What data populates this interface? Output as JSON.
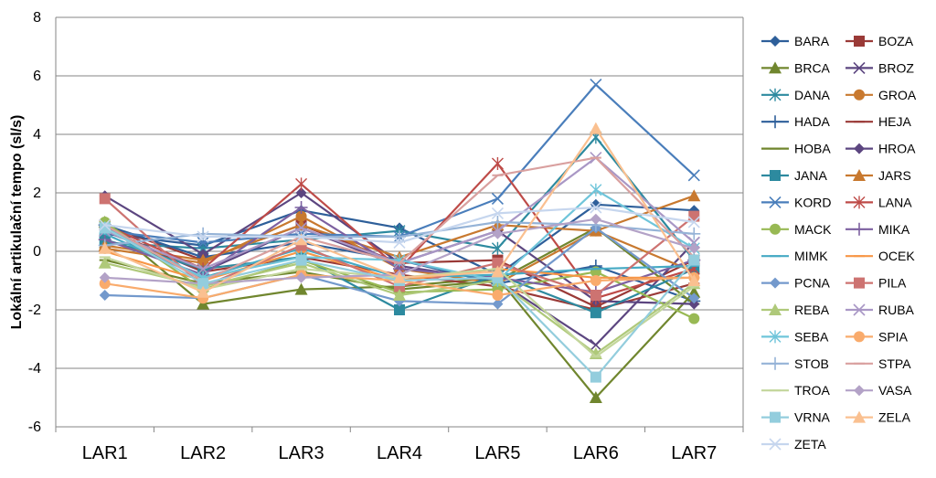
{
  "chart_data": {
    "type": "line",
    "title": "",
    "xlabel": "",
    "ylabel": "Lokální artikulační tempo (sl/s)",
    "categories": [
      "LAR1",
      "LAR2",
      "LAR3",
      "LAR4",
      "LAR5",
      "LAR6",
      "LAR7"
    ],
    "ylim": [
      -6,
      8
    ],
    "yticks": [
      -6,
      -4,
      -2,
      0,
      2,
      4,
      6,
      8
    ],
    "grid": true,
    "legend_position": "right",
    "series": [
      {
        "name": "BARA",
        "color": "#2e5f9a",
        "marker": "diamond",
        "values": [
          0.6,
          0.2,
          1.4,
          0.8,
          -0.8,
          1.6,
          1.4
        ]
      },
      {
        "name": "BOZA",
        "color": "#9a3a37",
        "marker": "square",
        "values": [
          0.9,
          -0.3,
          0.9,
          -0.4,
          -0.3,
          -1.9,
          -0.3
        ]
      },
      {
        "name": "BRCA",
        "color": "#70862e",
        "marker": "triangle",
        "values": [
          1.0,
          -1.8,
          -1.3,
          -1.2,
          -0.9,
          -5.0,
          -1.4
        ]
      },
      {
        "name": "BROZ",
        "color": "#5c4680",
        "marker": "x",
        "values": [
          0.7,
          -0.7,
          0.8,
          -0.5,
          -1.0,
          -3.2,
          0.3
        ]
      },
      {
        "name": "DANA",
        "color": "#2d8a9f",
        "marker": "asterisk",
        "values": [
          0.3,
          0.1,
          0.4,
          0.7,
          0.1,
          3.9,
          -0.3
        ]
      },
      {
        "name": "GROA",
        "color": "#c8792f",
        "marker": "circle",
        "values": [
          0.1,
          -0.4,
          1.2,
          -0.6,
          -1.1,
          0.7,
          -0.7
        ]
      },
      {
        "name": "HADA",
        "color": "#2e5f9a",
        "marker": "plus",
        "values": [
          0.9,
          -0.2,
          0.3,
          -0.3,
          -1.1,
          -0.5,
          -1.7
        ]
      },
      {
        "name": "HEJA",
        "color": "#9a3a37",
        "marker": "dash",
        "values": [
          0.8,
          -0.7,
          -0.2,
          -0.8,
          -1.2,
          -2.0,
          -1.1
        ]
      },
      {
        "name": "HOBA",
        "color": "#70862e",
        "marker": "dash",
        "values": [
          -0.3,
          -1.1,
          -0.7,
          -1.3,
          -1.0,
          0.8,
          -1.8
        ]
      },
      {
        "name": "HROA",
        "color": "#5c4680",
        "marker": "diamond",
        "values": [
          1.9,
          -0.1,
          2.0,
          -0.4,
          0.7,
          -1.7,
          -1.8
        ]
      },
      {
        "name": "JANA",
        "color": "#2d8a9f",
        "marker": "square",
        "values": [
          0.4,
          -0.6,
          -0.2,
          -2.0,
          -0.8,
          -2.1,
          -0.6
        ]
      },
      {
        "name": "JARS",
        "color": "#c8792f",
        "marker": "triangle",
        "values": [
          0.2,
          -0.3,
          0.9,
          -0.2,
          0.9,
          0.7,
          1.9
        ]
      },
      {
        "name": "KORD",
        "color": "#4a7ebb",
        "marker": "x",
        "values": [
          0.7,
          0.3,
          0.6,
          0.5,
          1.8,
          5.7,
          2.6
        ]
      },
      {
        "name": "LANA",
        "color": "#be4b48",
        "marker": "asterisk",
        "values": [
          0.9,
          -0.6,
          2.3,
          -0.6,
          3.0,
          -1.6,
          -0.6
        ]
      },
      {
        "name": "MACK",
        "color": "#98b954",
        "marker": "circle",
        "values": [
          1.0,
          -1.3,
          -0.3,
          -1.4,
          -1.3,
          -0.7,
          -2.3
        ]
      },
      {
        "name": "MIKA",
        "color": "#7d60a0",
        "marker": "plus",
        "values": [
          0.4,
          -0.8,
          1.5,
          -0.6,
          -0.9,
          -1.4,
          -0.3
        ]
      },
      {
        "name": "MIMK",
        "color": "#46aac4",
        "marker": "dash",
        "values": [
          0.6,
          -0.9,
          0.1,
          -0.9,
          -0.8,
          -0.6,
          -0.5
        ]
      },
      {
        "name": "OCEK",
        "color": "#f79646",
        "marker": "dash",
        "values": [
          0.0,
          -1.0,
          0.0,
          -1.0,
          -0.6,
          -0.9,
          -0.9
        ]
      },
      {
        "name": "PCNA",
        "color": "#7399cc",
        "marker": "diamond",
        "values": [
          -1.5,
          -1.6,
          -0.8,
          -1.7,
          -1.8,
          0.8,
          -1.6
        ]
      },
      {
        "name": "PILA",
        "color": "#cd7371",
        "marker": "square",
        "values": [
          1.8,
          -1.2,
          0.2,
          -1.2,
          -0.4,
          -1.5,
          1.2
        ]
      },
      {
        "name": "REBA",
        "color": "#afc97a",
        "marker": "triangle",
        "values": [
          -0.4,
          -1.2,
          -0.4,
          -1.5,
          -1.0,
          -3.5,
          -1.1
        ]
      },
      {
        "name": "RUBA",
        "color": "#a997c5",
        "marker": "x",
        "values": [
          0.7,
          -0.6,
          0.8,
          -0.4,
          0.7,
          3.2,
          0.3
        ]
      },
      {
        "name": "SEBA",
        "color": "#6fc5da",
        "marker": "asterisk",
        "values": [
          0.8,
          -0.9,
          -0.2,
          -0.3,
          -1.0,
          2.1,
          0.1
        ]
      },
      {
        "name": "SPIA",
        "color": "#f9ab6c",
        "marker": "circle",
        "values": [
          -1.1,
          -1.6,
          -0.8,
          -1.0,
          -1.5,
          -1.0,
          -0.9
        ]
      },
      {
        "name": "STOB",
        "color": "#95b3d7",
        "marker": "plus",
        "values": [
          0.2,
          0.6,
          0.5,
          0.5,
          1.0,
          0.9,
          0.6
        ]
      },
      {
        "name": "STPA",
        "color": "#d9a09f",
        "marker": "dash",
        "values": [
          0.9,
          -1.0,
          0.5,
          -0.4,
          2.6,
          3.2,
          -0.2
        ]
      },
      {
        "name": "TROA",
        "color": "#c3d69b",
        "marker": "dash",
        "values": [
          -0.2,
          -1.3,
          -0.6,
          -0.9,
          -0.6,
          -3.6,
          -1.2
        ]
      },
      {
        "name": "VASA",
        "color": "#b3a2c7",
        "marker": "diamond",
        "values": [
          -0.9,
          -1.1,
          -0.9,
          -0.8,
          0.6,
          1.1,
          0.1
        ]
      },
      {
        "name": "VRNA",
        "color": "#93cddd",
        "marker": "square",
        "values": [
          0.8,
          -1.1,
          -0.3,
          -1.0,
          -0.9,
          -4.3,
          -0.3
        ]
      },
      {
        "name": "ZELA",
        "color": "#fac090",
        "marker": "triangle",
        "values": [
          0.1,
          -1.4,
          0.4,
          -0.9,
          -0.7,
          4.2,
          -1.0
        ]
      },
      {
        "name": "ZETA",
        "color": "#c6d6ee",
        "marker": "x",
        "values": [
          0.9,
          0.5,
          0.5,
          0.3,
          1.3,
          1.5,
          1.0
        ]
      }
    ]
  }
}
